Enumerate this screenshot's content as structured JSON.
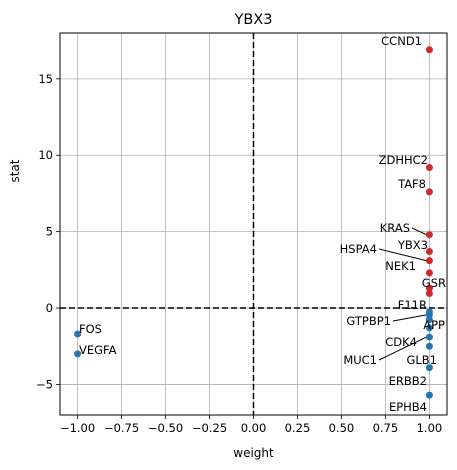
{
  "chart_data": {
    "type": "scatter",
    "title": "YBX3",
    "xlabel": "weight",
    "ylabel": "stat",
    "xlim": [
      -1.1,
      1.1
    ],
    "ylim": [
      -7.0,
      18.0
    ],
    "grid": true,
    "xticks": [
      -1.0,
      -0.75,
      -0.5,
      -0.25,
      0.0,
      0.25,
      0.5,
      0.75,
      1.0
    ],
    "xtick_labels": [
      "−1.00",
      "−0.75",
      "−0.50",
      "−0.25",
      "0.00",
      "0.25",
      "0.50",
      "0.75",
      "1.00"
    ],
    "yticks": [
      -5,
      0,
      5,
      10,
      15
    ],
    "ytick_labels": [
      "−5",
      "0",
      "5",
      "10",
      "15"
    ],
    "reference_lines": {
      "x": 0,
      "y": 0,
      "style": "dashed"
    },
    "colors": {
      "positive": "#d62728",
      "negative": "#1f77b4"
    },
    "points": [
      {
        "label": "CCND1",
        "x": 1.0,
        "y": 16.9
      },
      {
        "label": "ZDHHC2",
        "x": 1.0,
        "y": 9.2
      },
      {
        "label": "TAF8",
        "x": 1.0,
        "y": 7.6
      },
      {
        "label": "KRAS",
        "x": 1.0,
        "y": 4.8
      },
      {
        "label": "YBX3",
        "x": 1.0,
        "y": 3.7
      },
      {
        "label": "HSPA4",
        "x": 1.0,
        "y": 3.1
      },
      {
        "label": "NEK1",
        "x": 1.0,
        "y": 2.3
      },
      {
        "label": "GSR",
        "x": 1.0,
        "y": 1.3
      },
      {
        "label": "",
        "x": 1.0,
        "y": 0.95
      },
      {
        "label": "F11R",
        "x": 1.0,
        "y": -0.25
      },
      {
        "label": "GTPBP1",
        "x": 1.0,
        "y": -0.45
      },
      {
        "label": "APP",
        "x": 1.0,
        "y": -0.75
      },
      {
        "label": "CDK4",
        "x": 1.0,
        "y": -1.3
      },
      {
        "label": "MUC1",
        "x": 1.0,
        "y": -1.9
      },
      {
        "label": "GLB1",
        "x": 1.0,
        "y": -2.5
      },
      {
        "label": "ERBB2",
        "x": 1.0,
        "y": -3.9
      },
      {
        "label": "EPHB4",
        "x": 1.0,
        "y": -5.7
      },
      {
        "label": "FOS",
        "x": -1.0,
        "y": -1.7
      },
      {
        "label": "VEGFA",
        "x": -1.0,
        "y": -3.0
      }
    ]
  }
}
